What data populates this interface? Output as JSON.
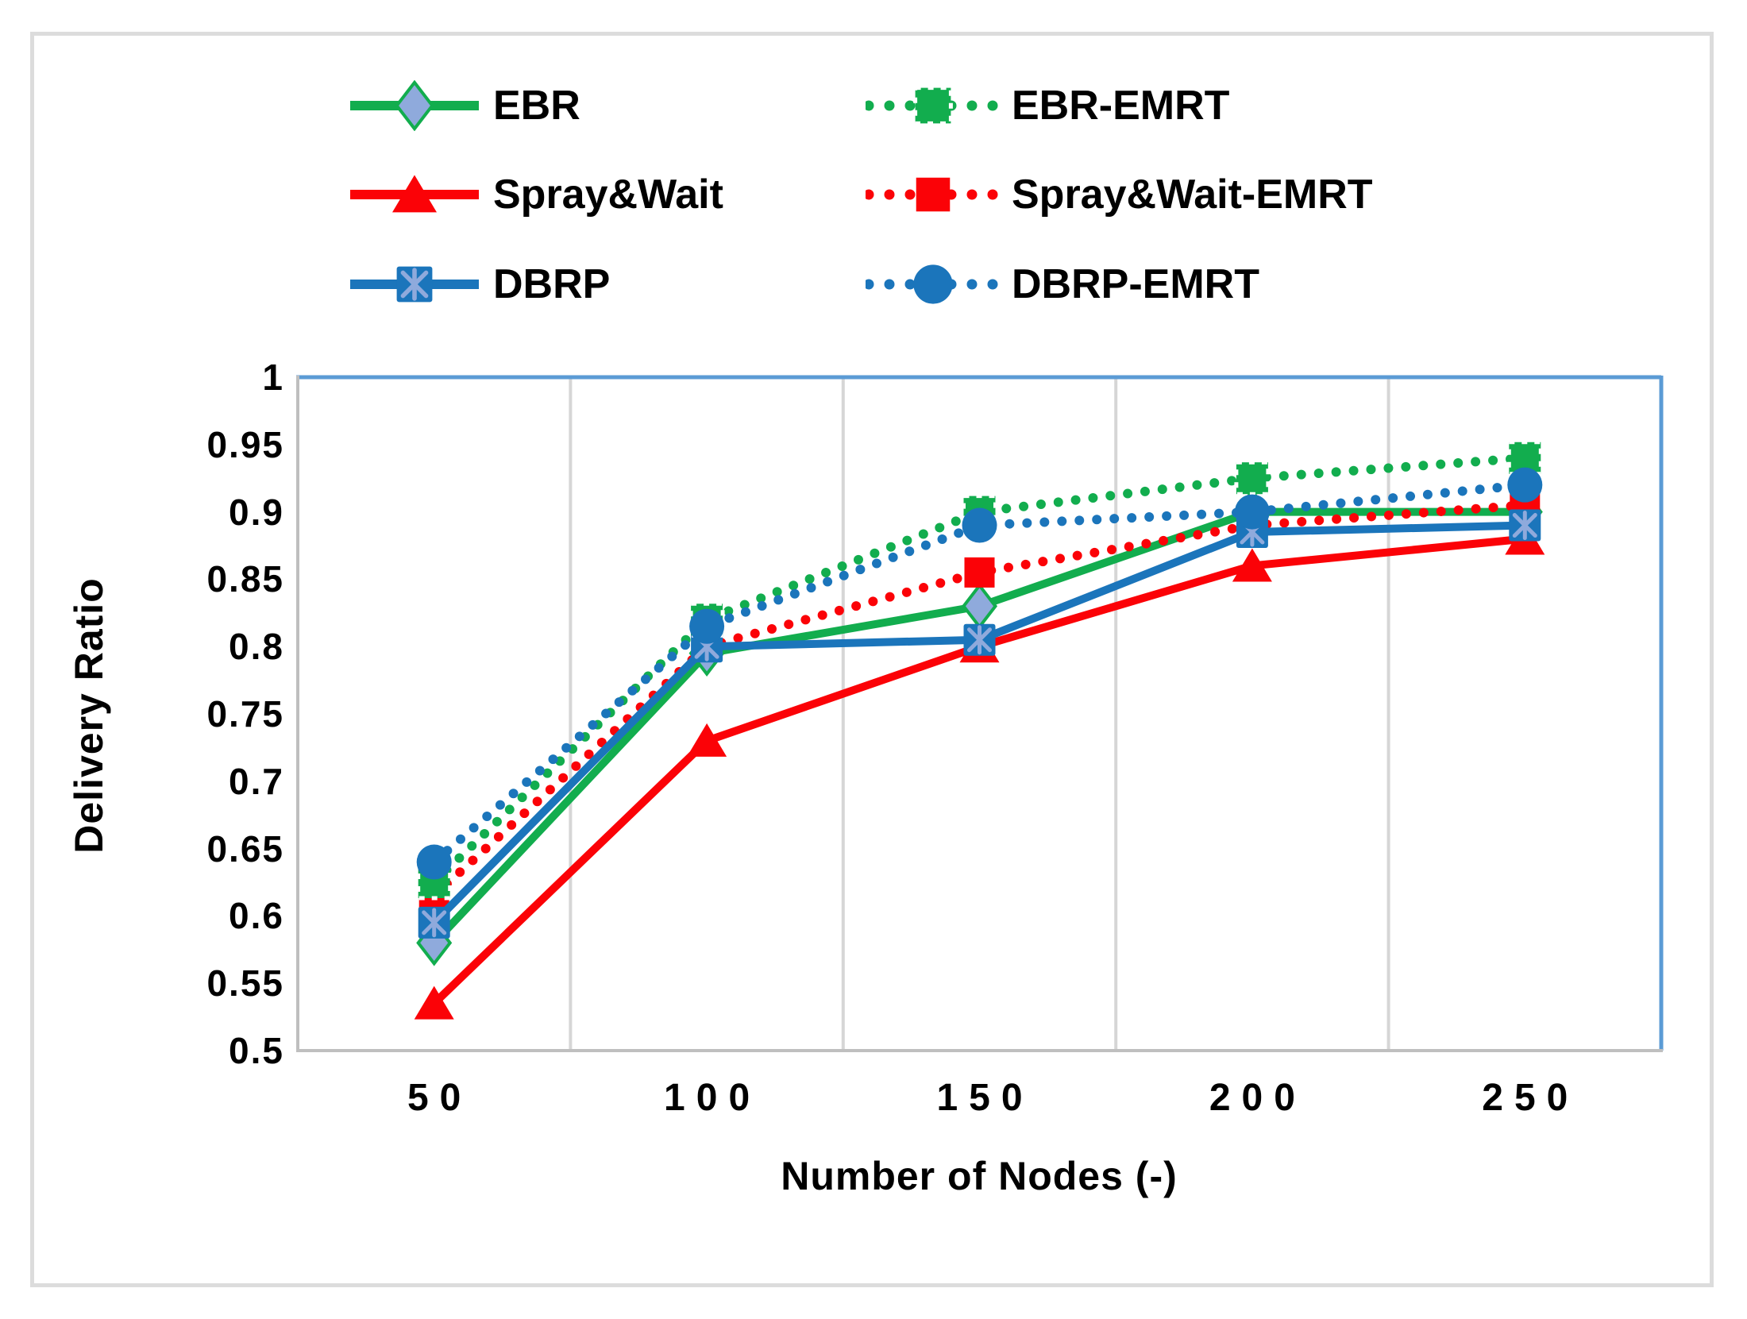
{
  "figure": {
    "outer_border_color": "#dcdcdc",
    "plot_border_color": "#5b9bd5",
    "axis_line_color": "#bfbfbf",
    "gridline_color": "#d6d6d6",
    "background": "#ffffff"
  },
  "chart_data": {
    "type": "line",
    "title": "",
    "xlabel": "Number of Nodes (-)",
    "ylabel": "Delivery Ratio",
    "categories": [
      "50",
      "100",
      "150",
      "200",
      "250"
    ],
    "x_axis_type": "categorical",
    "ylim": [
      0.5,
      1.0
    ],
    "yticks": [
      "1",
      "0.95",
      "0.9",
      "0.85",
      "0.8",
      "0.75",
      "0.7",
      "0.65",
      "0.6",
      "0.55",
      "0.5"
    ],
    "grid": "vertical-only",
    "legend_position": "top",
    "legend_columns": 2,
    "series": [
      {
        "name": "EBR",
        "color": "#12AD4E",
        "line": "solid",
        "marker": "diamond",
        "marker_fill": "#8FAADC",
        "values": [
          0.58,
          0.795,
          0.83,
          0.9,
          0.9
        ]
      },
      {
        "name": "EBR-EMRT",
        "color": "#12AD4E",
        "line": "dotted",
        "marker": "square-dashed",
        "values": [
          0.625,
          0.82,
          0.9,
          0.925,
          0.94
        ]
      },
      {
        "name": "Spray&Wait",
        "color": "#FB0207",
        "line": "solid",
        "marker": "triangle",
        "values": [
          0.535,
          0.73,
          0.8,
          0.86,
          0.88
        ]
      },
      {
        "name": "Spray&Wait-EMRT",
        "color": "#FB0207",
        "line": "dotted",
        "marker": "square",
        "values": [
          0.615,
          0.8,
          0.855,
          0.89,
          0.905
        ]
      },
      {
        "name": "DBRP",
        "color": "#1B75BB",
        "line": "solid",
        "marker": "asterisk-square",
        "glyph_color": "#8FAADC",
        "values": [
          0.595,
          0.8,
          0.805,
          0.885,
          0.89
        ]
      },
      {
        "name": "DBRP-EMRT",
        "color": "#1B75BB",
        "line": "dotted",
        "marker": "circle",
        "values": [
          0.64,
          0.815,
          0.89,
          0.9,
          0.92
        ]
      }
    ],
    "draw_order": [
      0,
      2,
      3,
      4,
      1,
      5
    ]
  }
}
